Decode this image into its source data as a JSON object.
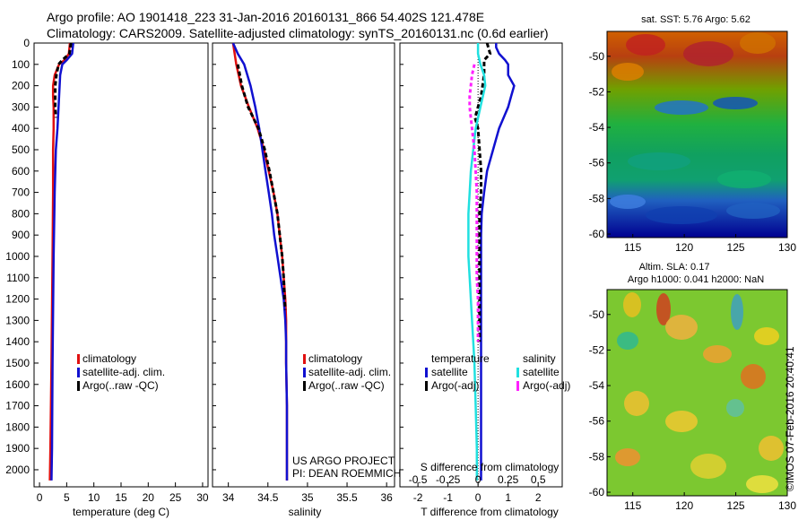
{
  "header": {
    "line1": "Argo profile: AO 1901418_223 31-Jan-2016 20160131_866 54.402S 121.478E",
    "line2": "Climatology: CARS2009. Satellite-adjusted climatology: synTS_20160131.nc (0.6d earlier)"
  },
  "colors": {
    "climatology": "#e01010",
    "satellite": "#1010d0",
    "argo": "#000000",
    "sal_satellite": "#20e0e0",
    "sal_argo": "#ff20ff"
  },
  "depth_axis": {
    "ticks": [
      0,
      100,
      200,
      300,
      400,
      500,
      600,
      700,
      800,
      900,
      1000,
      1100,
      1200,
      1300,
      1400,
      1500,
      1600,
      1700,
      1800,
      1900,
      2000
    ],
    "range": [
      0,
      2080
    ]
  },
  "legend_labels": {
    "climatology": "climatology",
    "satellite": "satellite-adj. clim.",
    "argo": "Argo(..raw -QC)"
  },
  "diff_legend": {
    "temperature": "temperature",
    "salinity": "salinity",
    "satellite": "satellite",
    "argo": "Argo(-adj)"
  },
  "project": {
    "line1": "US ARGO PROJECT",
    "line2": "PI: DEAN ROEMMICH"
  },
  "chart_data": [
    {
      "type": "line",
      "id": "temperature",
      "xlabel": "temperature (deg C)",
      "xlim": [
        -1,
        31
      ],
      "xticks": [
        0,
        5,
        10,
        15,
        20,
        25,
        30
      ],
      "ylim": [
        0,
        2080
      ],
      "series": [
        {
          "name": "climatology",
          "y": [
            0,
            50,
            80,
            100,
            150,
            200,
            250,
            300,
            400,
            500,
            700,
            1000,
            1500,
            1900,
            2050
          ],
          "values": [
            5.6,
            5.4,
            4.6,
            3.6,
            2.8,
            2.5,
            2.5,
            2.6,
            2.6,
            2.5,
            2.5,
            2.4,
            2.2,
            2.0,
            1.9
          ]
        },
        {
          "name": "satellite-adj. clim.",
          "y": [
            0,
            50,
            80,
            100,
            150,
            200,
            300,
            400,
            500,
            700,
            1000,
            1500,
            1900,
            2050
          ],
          "values": [
            6.2,
            6.0,
            5.0,
            4.2,
            3.8,
            3.7,
            3.5,
            3.3,
            3.0,
            2.8,
            2.6,
            2.4,
            2.3,
            2.2
          ]
        },
        {
          "name": "Argo(..raw -QC)",
          "y": [
            0,
            50,
            80,
            100,
            150,
            200,
            250,
            300,
            350
          ],
          "values": [
            5.8,
            5.5,
            4.2,
            3.5,
            3.1,
            2.9,
            2.9,
            2.9,
            3.0
          ]
        }
      ]
    },
    {
      "type": "line",
      "id": "salinity",
      "xlabel": "salinity",
      "xlim": [
        33.8,
        36.1
      ],
      "xticks": [
        34,
        34.5,
        35,
        35.5,
        36
      ],
      "ylim": [
        0,
        2080
      ],
      "series": [
        {
          "name": "climatology",
          "y": [
            0,
            100,
            200,
            300,
            400,
            500,
            600,
            700,
            800,
            900,
            1000,
            1100,
            1200,
            1300,
            1400,
            1500,
            1700,
            1900,
            2050
          ],
          "values": [
            34.06,
            34.1,
            34.16,
            34.26,
            34.37,
            34.45,
            34.51,
            34.57,
            34.62,
            34.65,
            34.68,
            34.7,
            34.72,
            34.73,
            34.73,
            34.73,
            34.74,
            34.74,
            34.74
          ]
        },
        {
          "name": "satellite-adj. clim.",
          "y": [
            0,
            50,
            100,
            200,
            300,
            400,
            500,
            600,
            700,
            800,
            900,
            1000,
            1100,
            1200,
            1300,
            1400,
            1500,
            1700,
            1900,
            2050
          ],
          "values": [
            34.06,
            34.12,
            34.2,
            34.28,
            34.34,
            34.39,
            34.43,
            34.47,
            34.51,
            34.55,
            34.58,
            34.62,
            34.66,
            34.7,
            34.72,
            34.73,
            34.73,
            34.74,
            34.74,
            34.74
          ]
        },
        {
          "name": "Argo(..raw -QC)",
          "y": [
            100,
            200,
            300,
            400,
            500,
            600,
            700,
            800,
            900,
            1000,
            1100,
            1200,
            1250
          ],
          "values": [
            34.12,
            34.17,
            34.25,
            34.38,
            34.46,
            34.52,
            34.57,
            34.62,
            34.65,
            34.68,
            34.7,
            34.71,
            34.72
          ]
        }
      ]
    },
    {
      "type": "line",
      "id": "difference",
      "xlabel": "T difference from climatology",
      "xlabel_top": "S difference from climatology",
      "xlim": [
        -2.6,
        2.8
      ],
      "xticks": [
        -2,
        -1,
        0,
        1,
        2
      ],
      "xticks_top": [
        -0.5,
        -0.25,
        0,
        0.25,
        0.5
      ],
      "ylim": [
        0,
        2080
      ],
      "series": [
        {
          "name": "temperature satellite",
          "y": [
            0,
            20,
            50,
            80,
            100,
            150,
            200,
            250,
            300,
            400,
            500,
            600,
            700,
            800,
            900,
            1000,
            1200,
            1500,
            1800,
            2050
          ],
          "values": [
            0.6,
            0.6,
            0.7,
            0.9,
            1.0,
            1.0,
            1.2,
            1.1,
            1.0,
            0.7,
            0.5,
            0.3,
            0.2,
            0.12,
            0.1,
            0.1,
            0.1,
            0.1,
            0.1,
            0.1
          ]
        },
        {
          "name": "temperature Argo(-adj)",
          "y": [
            0,
            50,
            80,
            100,
            150,
            200,
            250,
            300,
            350,
            400,
            500,
            600,
            700,
            800,
            1000,
            1200,
            1400
          ],
          "values": [
            0.3,
            0.4,
            0.2,
            0.2,
            0.2,
            0.15,
            0.1,
            0.0,
            -0.1,
            0.0,
            0.05,
            0.1,
            0.1,
            0.05,
            0.05,
            0.05,
            0.05
          ]
        },
        {
          "name": "salinity satellite",
          "y": [
            0,
            50,
            100,
            150,
            200,
            300,
            400,
            500,
            600,
            700,
            800,
            900,
            1000,
            1100,
            1200,
            1300,
            1400,
            1500,
            1700,
            1900,
            2050
          ],
          "values": [
            0,
            0,
            0.02,
            0.05,
            0.06,
            0.02,
            -0.02,
            -0.04,
            -0.06,
            -0.07,
            -0.08,
            -0.08,
            -0.08,
            -0.07,
            -0.06,
            -0.05,
            -0.04,
            -0.03,
            -0.02,
            -0.01,
            -0.01
          ]
        },
        {
          "name": "salinity Argo(-adj)",
          "y": [
            100,
            150,
            200,
            250,
            300,
            400,
            500,
            600,
            700,
            800,
            900,
            1000,
            1100,
            1200,
            1300,
            1400
          ],
          "values": [
            -0.03,
            -0.05,
            -0.06,
            -0.07,
            -0.07,
            -0.05,
            -0.03,
            -0.02,
            -0.01,
            -0.01,
            -0.01,
            -0.01,
            -0.01,
            0,
            0,
            0
          ]
        }
      ]
    },
    {
      "type": "heatmap",
      "id": "sst_map",
      "title": "sat. SST: 5.76  Argo: 5.62",
      "xlim": [
        112.5,
        130
      ],
      "ylim": [
        -60.2,
        -48.6
      ],
      "xticks": [
        115,
        120,
        125,
        130
      ],
      "yticks": [
        -50,
        -52,
        -54,
        -56,
        -58,
        -60
      ]
    },
    {
      "type": "heatmap",
      "id": "sla_map",
      "title_line1": "Altim. SLA: 0.17",
      "title_line2": "Argo h1000: 0.041  h2000: NaN",
      "xlim": [
        112.5,
        130
      ],
      "ylim": [
        -60.2,
        -48.6
      ],
      "xticks": [
        115,
        120,
        125,
        130
      ],
      "yticks": [
        -50,
        -52,
        -54,
        -56,
        -58,
        -60
      ]
    }
  ],
  "stamp": "©IMOS 07-Feb-2016 20:40:41"
}
